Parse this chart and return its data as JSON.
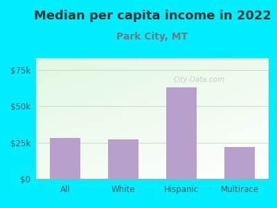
{
  "title": "Median per capita income in 2022",
  "subtitle": "Park City, MT",
  "categories": [
    "All",
    "White",
    "Hispanic",
    "Multirace"
  ],
  "values": [
    28000,
    27000,
    63000,
    22000
  ],
  "bar_color": "#b8a0cc",
  "background_color": "#00EEFF",
  "title_color": "#333333",
  "subtitle_color": "#777777",
  "axis_label_color": "#555555",
  "ytick_labels": [
    "$0",
    "$25k",
    "$50k",
    "$75k"
  ],
  "ytick_values": [
    0,
    25000,
    50000,
    75000
  ],
  "ylim": [
    0,
    83000
  ],
  "title_fontsize": 13,
  "subtitle_fontsize": 10,
  "tick_fontsize": 8.5,
  "watermark": "City-Data.com",
  "plot_gradient_colors": [
    "#e0f0e0",
    "#f8fff8",
    "#ffffff"
  ],
  "grid_color": "#ccddcc",
  "bottom_spine_color": "#aaaaaa"
}
